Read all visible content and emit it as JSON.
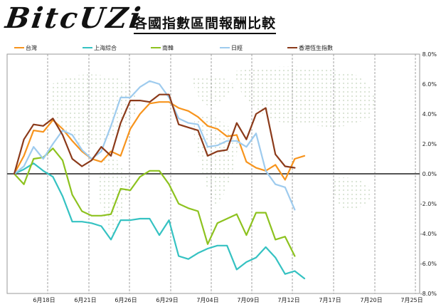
{
  "logo": "BitcUZi",
  "title": "各國指數區間報酬比較",
  "chart_data": {
    "type": "line",
    "title": "各國指數區間報酬比較",
    "x_labels": [
      "6月18日",
      "6月21日",
      "6月26日",
      "6月29日",
      "7月04日",
      "7月09日",
      "7月12日",
      "7月17日",
      "7月20日",
      "7月25日"
    ],
    "y_ticks": [
      "8.0%",
      "6.0%",
      "4.0%",
      "2.0%",
      "0.0%",
      "-2.0%",
      "-4.0%",
      "-6.0%",
      "-8.0%"
    ],
    "ylim": [
      -8,
      8
    ],
    "n_points": 41,
    "legend_position": "top",
    "grid": "vertical dashed",
    "series": [
      {
        "name": "台灣",
        "color": "#f7941d",
        "values": [
          0.0,
          1.2,
          2.9,
          2.8,
          3.6,
          3.0,
          2.2,
          1.5,
          1.0,
          0.8,
          1.5,
          1.2,
          3.0,
          4.0,
          4.7,
          4.8,
          4.8,
          4.4,
          4.2,
          3.8,
          3.2,
          3.0,
          2.5,
          2.6,
          0.8,
          0.4,
          0.2,
          0.6,
          -0.4,
          1.0,
          1.2,
          null,
          null,
          null,
          null,
          null,
          null,
          null,
          null,
          null,
          null
        ]
      },
      {
        "name": "上海綜合",
        "color": "#35c2c2",
        "values": [
          0.0,
          0.3,
          0.7,
          0.2,
          -0.2,
          -1.5,
          -3.2,
          -3.2,
          -3.3,
          -3.5,
          -4.4,
          -3.1,
          -3.1,
          -3.0,
          -3.0,
          -4.1,
          -3.1,
          -5.5,
          -5.7,
          -5.3,
          -5.0,
          -4.8,
          -4.8,
          -6.4,
          -5.9,
          -5.6,
          -4.9,
          -5.6,
          -6.7,
          -6.5,
          -7.0,
          null,
          null,
          null,
          null,
          null,
          null,
          null,
          null,
          null,
          null
        ]
      },
      {
        "name": "南韓",
        "color": "#8dc21f",
        "values": [
          0.0,
          -0.7,
          1.0,
          1.1,
          1.7,
          0.9,
          -1.4,
          -2.5,
          -2.8,
          -2.8,
          -2.7,
          -1.0,
          -1.1,
          -0.2,
          0.2,
          0.2,
          -0.7,
          -2.0,
          -2.3,
          -2.5,
          -4.7,
          -3.3,
          -3.0,
          -2.7,
          -4.1,
          -2.6,
          -2.6,
          -4.4,
          -4.2,
          -5.5,
          null,
          null,
          null,
          null,
          null,
          null,
          null,
          null,
          null,
          null,
          null
        ]
      },
      {
        "name": "日經",
        "color": "#9ecbee",
        "values": [
          0.0,
          0.5,
          1.8,
          1.0,
          2.0,
          2.9,
          2.6,
          1.6,
          1.0,
          1.5,
          3.2,
          5.1,
          5.1,
          5.8,
          6.2,
          6.0,
          5.1,
          3.7,
          3.4,
          3.3,
          1.8,
          1.9,
          2.2,
          2.2,
          1.8,
          2.7,
          0.2,
          -0.7,
          -0.9,
          -2.4,
          null,
          null,
          null,
          null,
          null,
          null,
          null,
          null,
          null,
          null,
          null
        ]
      },
      {
        "name": "香港恆生指數",
        "color": "#8b3a1a",
        "values": [
          0.0,
          2.3,
          3.3,
          3.2,
          3.7,
          2.6,
          1.0,
          0.5,
          0.9,
          1.8,
          1.2,
          3.4,
          4.9,
          4.9,
          4.8,
          5.3,
          5.3,
          3.3,
          3.1,
          2.9,
          1.2,
          1.5,
          1.6,
          3.4,
          2.3,
          4.0,
          4.4,
          1.3,
          0.5,
          0.4,
          null,
          null,
          null,
          null,
          null,
          null,
          null,
          null,
          null,
          null,
          null
        ]
      }
    ]
  }
}
